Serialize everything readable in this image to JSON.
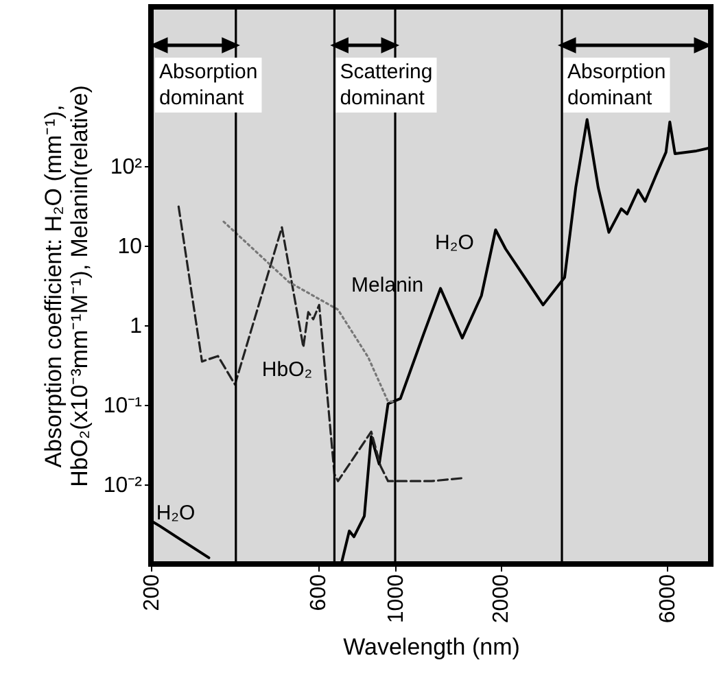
{
  "chart_data": {
    "type": "line",
    "xlabel": "Wavelength (nm)",
    "ylabel": "Absorption coefficient: H₂O (mm⁻¹),\nHbO₂(x10⁻³mm⁻¹M⁻¹), Melanin(relative)",
    "log": "xy",
    "grid": false,
    "marker": "none",
    "xlim": [
      200,
      8000
    ],
    "xticks": [
      200,
      600,
      1000,
      2000,
      6000
    ],
    "ylim": [
      0.001,
      10000
    ],
    "yticks": [
      {
        "value": 0.01,
        "label": "10⁻²"
      },
      {
        "value": 0.1,
        "label": "10⁻¹"
      },
      1,
      10,
      {
        "value": 100,
        "label": "10²"
      }
    ],
    "series": [
      {
        "name": "H₂O",
        "color": "#000000",
        "line_style": "solid",
        "x": [
          200,
          212,
          293,
          650,
          701,
          739,
          762,
          816,
          854,
          900,
          954,
          1035,
          1208,
          1348,
          1556,
          1765,
          1938,
          2070,
          2650,
          3054,
          3287,
          3541,
          3809,
          4087,
          4435,
          4609,
          4957,
          5190,
          5607,
          5955,
          6108,
          6320,
          7280,
          8000
        ],
        "values": [
          0.0035,
          0.003,
          0.0012,
          null,
          0.001,
          0.0026,
          0.0022,
          0.004,
          0.04,
          0.018,
          0.103,
          0.12,
          0.79,
          2.9,
          0.69,
          2.35,
          15.8,
          9.1,
          1.8,
          4.0,
          54,
          384,
          54,
          14.7,
          29,
          25,
          50,
          36,
          81,
          149,
          358,
          143,
          155,
          170
        ]
      },
      {
        "name": "HbO₂",
        "color": "#222222",
        "line_style": "dashed",
        "x": [
          240,
          280,
          311,
          348,
          474,
          546,
          564,
          583,
          606,
          670,
          686,
          854,
          908,
          954,
          1270,
          1560
        ],
        "values": [
          31,
          0.35,
          0.41,
          0.18,
          17,
          0.53,
          1.46,
          1.19,
          1.8,
          0.0135,
          0.011,
          0.046,
          0.017,
          0.011,
          0.011,
          0.012
        ]
      },
      {
        "name": "Melanin",
        "color": "#777777",
        "line_style": "dotted",
        "x": [
          323,
          496,
          686,
          836,
          954,
          1000
        ],
        "values": [
          20,
          3.5,
          1.57,
          0.4,
          0.11,
          0.11
        ]
      }
    ],
    "ref_lines": [
      {
        "axis": "x",
        "value": 350,
        "color": "#000000"
      },
      {
        "axis": "x",
        "value": 670,
        "color": "#000000"
      },
      {
        "axis": "x",
        "value": 1000,
        "color": "#000000"
      },
      {
        "axis": "x",
        "value": 3000,
        "color": "#000000"
      }
    ],
    "annotations": [
      "Absorption\ndominant",
      "Scattering\ndominant",
      "Absorption\ndominant",
      "H₂O"
    ]
  }
}
